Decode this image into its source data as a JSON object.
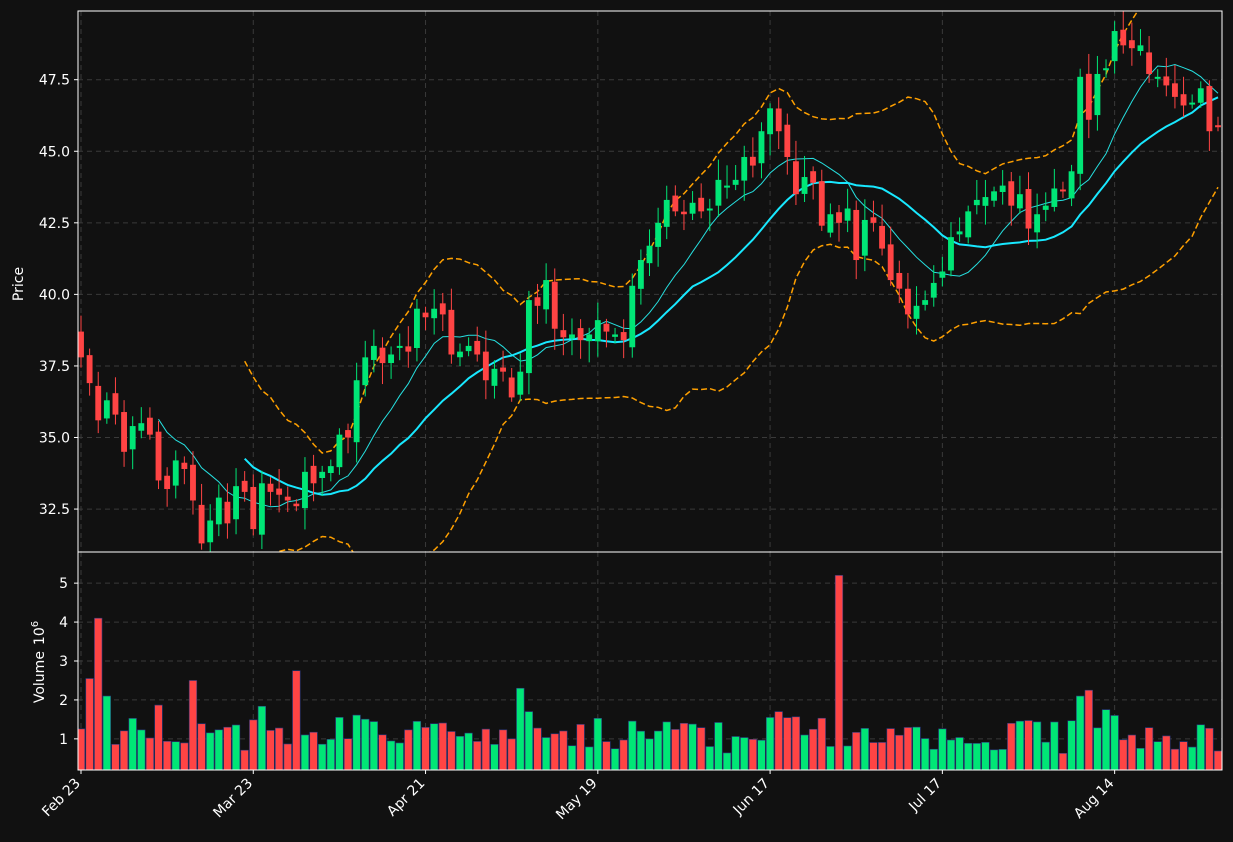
{
  "colors": {
    "background": "#111111",
    "frame": "#ffffff",
    "grid": "#3a3a3a",
    "up": "#00e676",
    "down": "#ff4444",
    "ma_fast": "#26e0e0",
    "ma_slow": "#18e8ff",
    "bollinger": "#ffa000",
    "text": "#ffffff"
  },
  "chart_data": {
    "type": "candlestick",
    "grid": true,
    "price_axis": {
      "label": "Price",
      "range": [
        31.0,
        49.9
      ],
      "ticks": [
        32.5,
        35.0,
        37.5,
        40.0,
        42.5,
        45.0,
        47.5
      ],
      "tick_labels": [
        "32.5",
        "35.0",
        "37.5",
        "40.0",
        "42.5",
        "45.0",
        "47.5"
      ]
    },
    "volume_axis": {
      "label": "Volume",
      "exponent": "6",
      "range": [
        0.2,
        5.8
      ],
      "ticks": [
        1,
        2,
        3,
        4,
        5
      ],
      "tick_labels": [
        "1",
        "2",
        "3",
        "4",
        "5"
      ]
    },
    "x_axis": {
      "tick_labels": [
        "Feb 23",
        "Mar 23",
        "Apr 21",
        "May 19",
        "Jun 17",
        "Jul 17",
        "Aug 14"
      ],
      "tick_indices": [
        0,
        20,
        40,
        60,
        80,
        100,
        120
      ]
    },
    "closes": [
      37.8,
      36.9,
      35.6,
      36.3,
      35.8,
      34.5,
      35.4,
      35.5,
      35.1,
      33.5,
      33.2,
      34.2,
      33.9,
      32.8,
      31.3,
      32.1,
      32.9,
      32.0,
      33.3,
      33.1,
      31.8,
      33.4,
      33.1,
      33.0,
      32.8,
      32.6,
      33.8,
      33.4,
      33.8,
      34.0,
      35.1,
      35.0,
      37.0,
      37.8,
      38.2,
      37.6,
      37.9,
      38.2,
      38.0,
      39.5,
      39.2,
      39.5,
      39.3,
      37.9,
      38.0,
      38.2,
      37.9,
      37.0,
      37.4,
      37.3,
      36.4,
      37.3,
      39.8,
      39.6,
      40.5,
      38.8,
      38.5,
      38.6,
      38.4,
      38.6,
      39.1,
      38.7,
      38.6,
      38.4,
      40.3,
      41.2,
      41.7,
      42.5,
      43.3,
      42.9,
      42.8,
      43.2,
      42.9,
      43.0,
      44.0,
      43.8,
      44.0,
      44.8,
      44.5,
      45.7,
      46.5,
      45.7,
      44.8,
      43.5,
      44.1,
      43.9,
      42.4,
      42.8,
      42.5,
      43.0,
      41.2,
      42.6,
      42.5,
      41.6,
      40.5,
      40.2,
      39.3,
      39.6,
      39.8,
      40.4,
      40.8,
      42.0,
      42.2,
      42.9,
      43.3,
      43.4,
      43.6,
      43.8,
      43.1,
      43.5,
      42.3,
      42.8,
      43.1,
      43.7,
      43.6,
      44.3,
      47.6,
      46.1,
      47.7,
      47.9,
      49.2,
      48.7,
      48.6,
      48.7,
      47.7,
      47.6,
      47.3,
      46.9,
      46.6,
      46.7,
      47.2,
      45.7,
      45.9
    ]
  }
}
